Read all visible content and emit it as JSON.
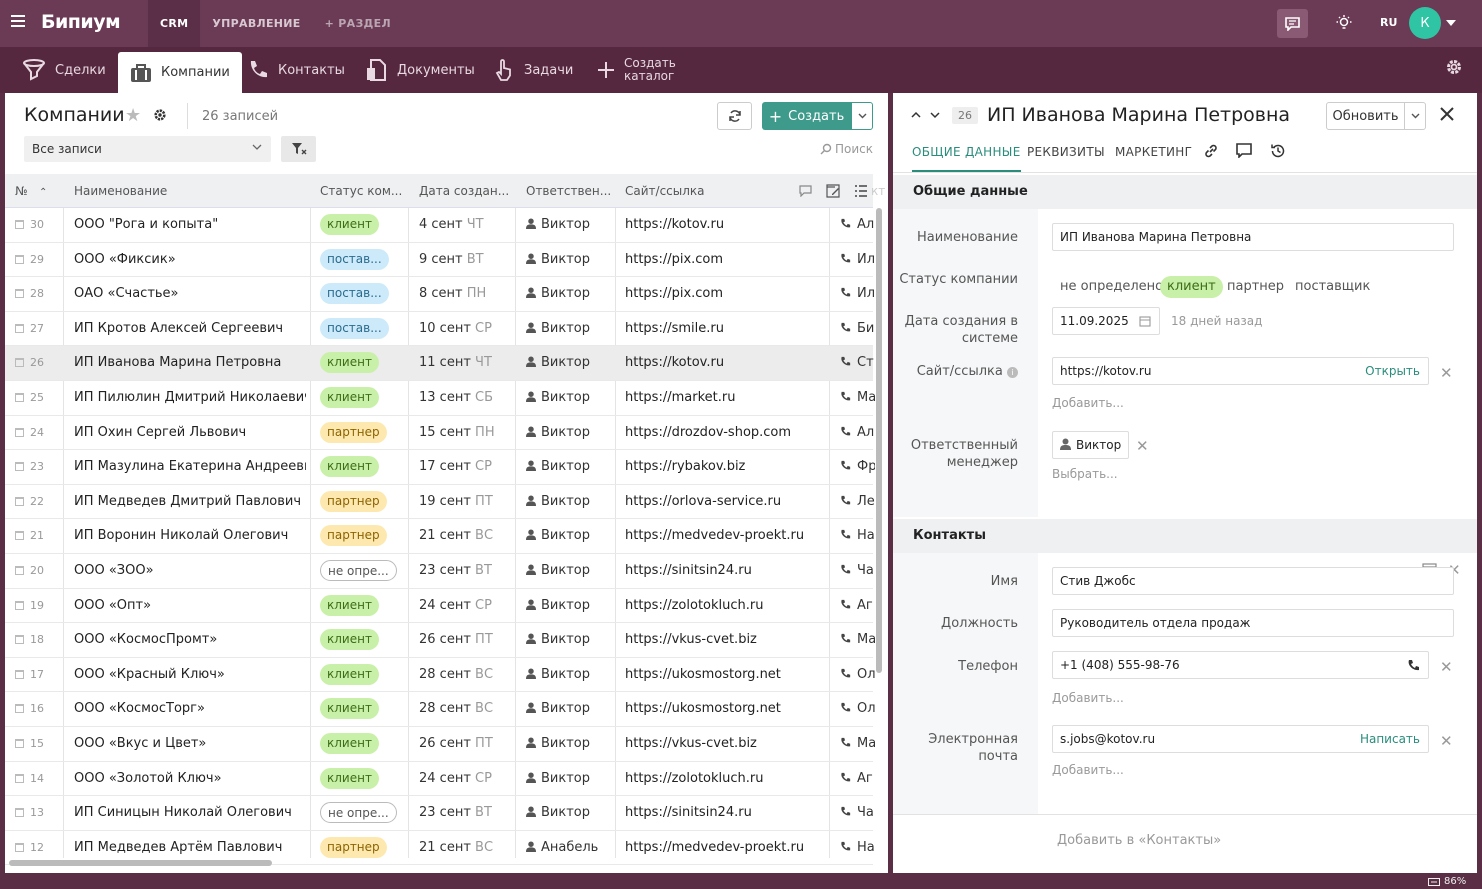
{
  "app": {
    "logo": "Бипиум",
    "nav": [
      "CRM",
      "УПРАВЛЕНИЕ",
      "+ РАЗДЕЛ"
    ],
    "lang": "RU",
    "avatar_letter": "К",
    "zoom": "86%"
  },
  "tabs": [
    "Сделки",
    "Компании",
    "Контакты",
    "Документы",
    "Задачи"
  ],
  "tab_create": [
    "Создать",
    "каталог"
  ],
  "list": {
    "title": "Компании",
    "count": "26 записей",
    "create": "Создать",
    "filter": "Все записи",
    "search": "Поиск",
    "headers": [
      "№",
      "Наименование",
      "Статус ком...",
      "Дата создан...",
      "Ответствен...",
      "Сайт/ссылка",
      "кт"
    ],
    "rows": [
      {
        "n": "30",
        "name": "ООО \"Рога и копыта\"",
        "status": "клиент",
        "st": "k",
        "date": "4 сент",
        "dow": "ЧТ",
        "resp": "Виктор",
        "site": "https://kotov.ru",
        "ph": "Ал"
      },
      {
        "n": "29",
        "name": "ООО «Фиксик»",
        "status": "постав...",
        "st": "p",
        "date": "9 сент",
        "dow": "ВТ",
        "resp": "Виктор",
        "site": "https://pix.com",
        "ph": "Ил"
      },
      {
        "n": "28",
        "name": "ОАО «Счастье»",
        "status": "постав...",
        "st": "p",
        "date": "8 сент",
        "dow": "ПН",
        "resp": "Виктор",
        "site": "https://pix.com",
        "ph": "Ил"
      },
      {
        "n": "27",
        "name": "ИП Кротов Алексей Сергеевич",
        "status": "постав...",
        "st": "p",
        "date": "10 сент",
        "dow": "СР",
        "resp": "Виктор",
        "site": "https://smile.ru",
        "ph": "Би"
      },
      {
        "n": "26",
        "name": "ИП Иванова Марина Петровна",
        "status": "клиент",
        "st": "k",
        "date": "11 сент",
        "dow": "ЧТ",
        "resp": "Виктор",
        "site": "https://kotov.ru",
        "ph": "Ст",
        "sel": true
      },
      {
        "n": "25",
        "name": "ИП Пилюлин Дмитрий Николаевич",
        "status": "клиент",
        "st": "k",
        "date": "13 сент",
        "dow": "СБ",
        "resp": "Виктор",
        "site": "https://market.ru",
        "ph": "Ма"
      },
      {
        "n": "24",
        "name": "ИП Охин Сергей Львович",
        "status": "партнер",
        "st": "t",
        "date": "15 сент",
        "dow": "ПН",
        "resp": "Виктор",
        "site": "https://drozdov-shop.com",
        "ph": "Ал"
      },
      {
        "n": "23",
        "name": "ИП Мазулина Екатерина Андреевна",
        "status": "клиент",
        "st": "k",
        "date": "17 сент",
        "dow": "СР",
        "resp": "Виктор",
        "site": "https://rybakov.biz",
        "ph": "Фр"
      },
      {
        "n": "22",
        "name": "ИП Медведев Дмитрий Павлович",
        "status": "партнер",
        "st": "t",
        "date": "19 сент",
        "dow": "ПТ",
        "resp": "Виктор",
        "site": "https://orlova-service.ru",
        "ph": "Ле"
      },
      {
        "n": "21",
        "name": "ИП Воронин Николай Олегович",
        "status": "партнер",
        "st": "t",
        "date": "21 сент",
        "dow": "ВС",
        "resp": "Виктор",
        "site": "https://medvedev-proekt.ru",
        "ph": "На"
      },
      {
        "n": "20",
        "name": "ООО «ЗОО»",
        "status": "не опре...",
        "st": "n",
        "date": "23 сент",
        "dow": "ВТ",
        "resp": "Виктор",
        "site": "https://sinitsin24.ru",
        "ph": "Ча"
      },
      {
        "n": "19",
        "name": "ООО «Опт»",
        "status": "клиент",
        "st": "k",
        "date": "24 сент",
        "dow": "СР",
        "resp": "Виктор",
        "site": "https://zolotokluch.ru",
        "ph": "Аг"
      },
      {
        "n": "18",
        "name": "ООО «КосмосПромт»",
        "status": "клиент",
        "st": "k",
        "date": "26 сент",
        "dow": "ПТ",
        "resp": "Виктор",
        "site": "https://vkus-cvet.biz",
        "ph": "Ма"
      },
      {
        "n": "17",
        "name": "ООО «Красный Ключ»",
        "status": "клиент",
        "st": "k",
        "date": "28 сент",
        "dow": "ВС",
        "resp": "Виктор",
        "site": "https://ukosmostorg.net",
        "ph": "Ол"
      },
      {
        "n": "16",
        "name": "ООО «КосмосТорг»",
        "status": "клиент",
        "st": "k",
        "date": "28 сент",
        "dow": "ВС",
        "resp": "Виктор",
        "site": "https://ukosmostorg.net",
        "ph": "Ол"
      },
      {
        "n": "15",
        "name": "ООО «Вкус и Цвет»",
        "status": "клиент",
        "st": "k",
        "date": "26 сент",
        "dow": "ПТ",
        "resp": "Виктор",
        "site": "https://vkus-cvet.biz",
        "ph": "Ма"
      },
      {
        "n": "14",
        "name": "ООО «Золотой Ключ»",
        "status": "клиент",
        "st": "k",
        "date": "24 сент",
        "dow": "СР",
        "resp": "Виктор",
        "site": "https://zolotokluch.ru",
        "ph": "Аг"
      },
      {
        "n": "13",
        "name": "ИП Синицын Николай Олегович",
        "status": "не опре...",
        "st": "n",
        "date": "23 сент",
        "dow": "ВТ",
        "resp": "Виктор",
        "site": "https://sinitsin24.ru",
        "ph": "Ча"
      },
      {
        "n": "12",
        "name": "ИП Медведев Артём Павлович",
        "status": "партнер",
        "st": "t",
        "date": "21 сент",
        "dow": "ВС",
        "resp": "Анабель",
        "site": "https://medvedev-proekt.ru",
        "ph": "На"
      }
    ]
  },
  "card": {
    "num": "26",
    "title": "ИП Иванова Марина Петровна",
    "update": "Обновить",
    "tabs": [
      "ОБЩИЕ ДАННЫЕ",
      "РЕКВИЗИТЫ",
      "МАРКЕТИНГ"
    ],
    "section_general": "Общие данные",
    "labels": {
      "name": "Наименование",
      "status": "Статус компании",
      "date": "Дата создания в системе",
      "site": "Сайт/ссылка",
      "manager": "Ответственный менеджер"
    },
    "name": "ИП Иванова Марина Петровна",
    "status_options": [
      "не определено",
      "клиент",
      "партнер",
      "поставщик"
    ],
    "date": "11.09.2025",
    "date_ago": "18 дней назад",
    "site": "https://kotov.ru",
    "open": "Открыть",
    "add": "Добавить...",
    "manager": "Виктор",
    "choose": "Выбрать...",
    "section_contacts": "Контакты",
    "clabels": {
      "name": "Имя",
      "position": "Должность",
      "phone": "Телефон",
      "email": "Электронная почта"
    },
    "contact_name": "Стив Джобс",
    "position": "Руководитель отдела продаж",
    "phone": "+1 (408) 555-98-76",
    "email": "s.jobs@kotov.ru",
    "write": "Написать",
    "add_contacts": "Добавить в «Контакты»"
  }
}
